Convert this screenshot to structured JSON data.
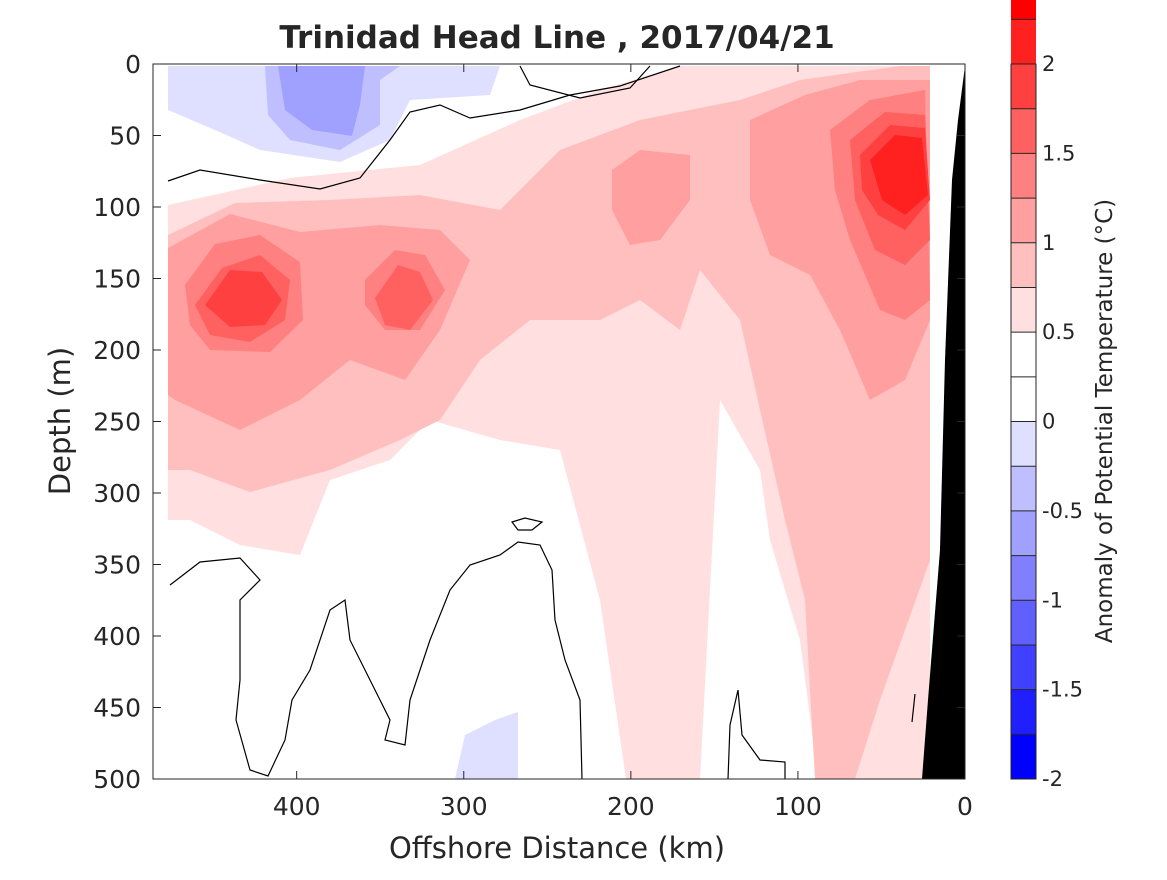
{
  "chart_data": {
    "type": "heatmap",
    "title": "Trinidad Head Line , 2017/04/21",
    "xlabel": "Offshore Distance (km)",
    "ylabel": "Depth (m)",
    "xlim": [
      486,
      0
    ],
    "ylim": [
      0,
      500
    ],
    "x_reversed": true,
    "y_reversed": true,
    "x_ticks": [
      "400",
      "300",
      "200",
      "100",
      "0"
    ],
    "x_tick_values": [
      400,
      300,
      200,
      100,
      0
    ],
    "y_ticks": [
      "0",
      "50",
      "100",
      "150",
      "200",
      "250",
      "300",
      "350",
      "400",
      "450",
      "500"
    ],
    "y_tick_values": [
      0,
      50,
      100,
      150,
      200,
      250,
      300,
      350,
      400,
      450,
      500
    ],
    "colorbar": {
      "label": "Anomaly of Potential Temperature (°C)",
      "range": [
        -2,
        2
      ],
      "step": 0.25,
      "ticks": [
        "2",
        "1.5",
        "1",
        "0.5",
        "0",
        "-0.5",
        "-1",
        "-1.5",
        "-2"
      ],
      "tick_values": [
        2,
        1.5,
        1,
        0.5,
        0,
        -0.5,
        -1,
        -1.5,
        -2
      ],
      "colors": [
        "#0000ff",
        "#2020ff",
        "#4040ff",
        "#6060ff",
        "#8080ff",
        "#a0a0ff",
        "#bfbfff",
        "#dfdfff",
        "#ffffff",
        "#ffffff",
        "#ffdfdf",
        "#ffbfbf",
        "#ff9f9f",
        "#ff8080",
        "#ff6060",
        "#ff4040",
        "#ff2020",
        "#ff0000"
      ]
    },
    "features": [
      {
        "name": "warm core offshore",
        "center_km": 430,
        "center_depth_m": 160,
        "peak_anomaly": 1.5
      },
      {
        "name": "warm core mid",
        "center_km": 345,
        "center_depth_m": 160,
        "peak_anomaly": 1.25
      },
      {
        "name": "warm core nearshore",
        "center_km": 40,
        "center_depth_m": 75,
        "peak_anomaly": 2.0
      },
      {
        "name": "cold surface layer",
        "center_km": 370,
        "center_depth_m": 25,
        "peak_anomaly": -0.75
      },
      {
        "name": "cold deep patch",
        "center_km": 290,
        "center_depth_m": 480,
        "peak_anomaly": -0.25
      }
    ],
    "colors": {
      "bathymetry": "#000000",
      "zero_contour": "#000000"
    }
  }
}
